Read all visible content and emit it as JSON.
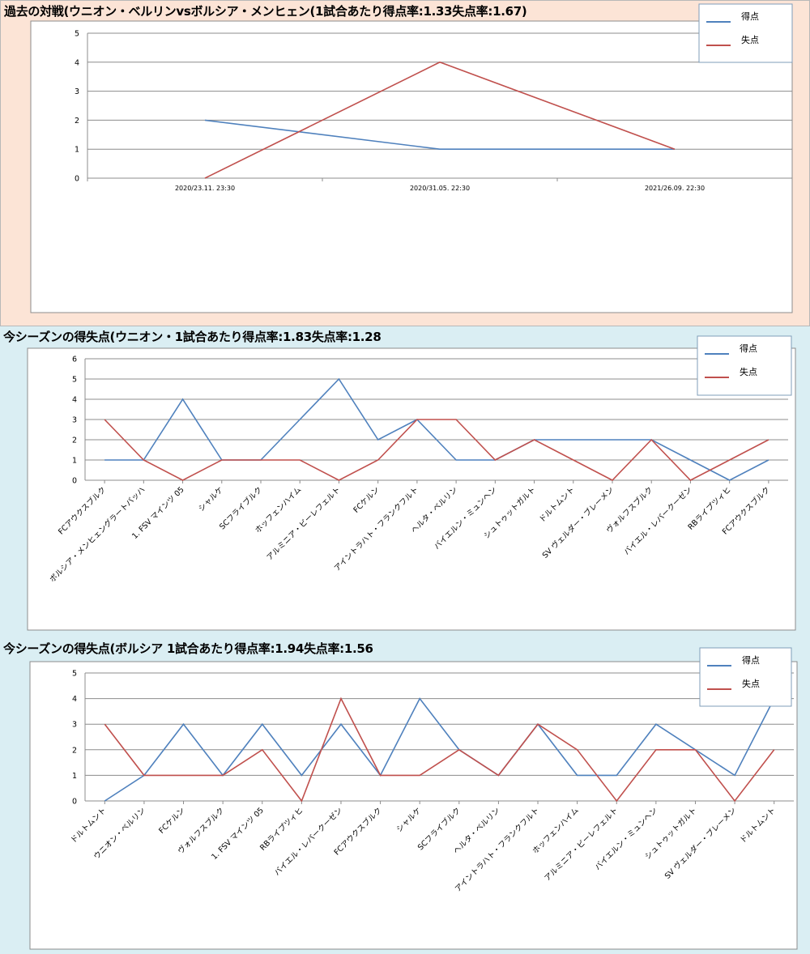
{
  "colors": {
    "scored": "#4f81bd",
    "conceded": "#c0504d",
    "grid": "#8c8c8c",
    "panel1_bg": "#fce4d6",
    "panel23_bg": "#daeef3"
  },
  "legend": {
    "scored": "得点",
    "conceded": "失点"
  },
  "chart_data": [
    {
      "type": "line",
      "title": "過去の対戦(ウニオン・ベルリンvsボルシア・メンヒェン(1試合あたり得点率:1.33失点率:1.67)",
      "categories": [
        "2020/23.11. 23:30",
        "2020/31.05. 22:30",
        "2021/26.09. 22:30"
      ],
      "series": [
        {
          "name": "得点",
          "values": [
            2,
            1,
            1
          ]
        },
        {
          "name": "失点",
          "values": [
            0,
            4,
            1
          ]
        }
      ],
      "ylim": [
        0,
        5
      ],
      "yticks": [
        "0",
        "1",
        "2",
        "3",
        "4",
        "5"
      ],
      "grid": true,
      "legend_position": "top-right"
    },
    {
      "type": "line",
      "title": "今シーズンの得失点(ウニオン・1試合あたり得点率:1.83失点率:1.28",
      "categories": [
        "FCアウクスブルク",
        "ボルシア・メンヒェングラートバッハ",
        "1. FSV マインツ 05",
        "シャルケ",
        "SCフライブルク",
        "ホッフェンハイム",
        "アルミニア・ビーレフェルト",
        "FCケルン",
        "アイントラハト・フランクフルト",
        "ヘルタ・ベルリン",
        "バイエルン・ミュンヘン",
        "シュトゥットガルト",
        "ドルトムント",
        "SV ヴェルダー・ブレーメン",
        "ヴォルフスブルク",
        "バイエル・レバークーゼン",
        "RBライプツィヒ",
        "FCアウクスブルク"
      ],
      "series": [
        {
          "name": "得点",
          "values": [
            1,
            1,
            4,
            1,
            1,
            3,
            5,
            2,
            3,
            1,
            1,
            2,
            2,
            2,
            2,
            1,
            0,
            1
          ]
        },
        {
          "name": "失点",
          "values": [
            3,
            1,
            0,
            1,
            1,
            1,
            0,
            1,
            3,
            3,
            1,
            2,
            1,
            0,
            2,
            0,
            1,
            2
          ]
        }
      ],
      "ylim": [
        0,
        6
      ],
      "yticks": [
        "0",
        "1",
        "2",
        "3",
        "4",
        "5",
        "6"
      ],
      "grid": true,
      "legend_position": "top-right"
    },
    {
      "type": "line",
      "title": "今シーズンの得失点(ボルシア 1試合あたり得点率:1.94失点率:1.56",
      "categories": [
        "ドルトムント",
        "ウニオン・ベルリン",
        "FCケルン",
        "ヴォルフスブルク",
        "1. FSV マインツ 05",
        "RBライプツィヒ",
        "バイエル・レバークーゼン",
        "FCアウクスブルク",
        "シャルケ",
        "SCフライブルク",
        "ヘルタ・ベルリン",
        "アイントラハト・フランクフルト",
        "ホッフェンハイム",
        "アルミニア・ビーレフェルト",
        "バイエルン・ミュンヘン",
        "シュトゥットガルト",
        "SV ヴェルダー・ブレーメン",
        "ドルトムント"
      ],
      "series": [
        {
          "name": "得点",
          "values": [
            0,
            1,
            3,
            1,
            3,
            1,
            3,
            1,
            4,
            2,
            1,
            3,
            1,
            1,
            3,
            2,
            1,
            4
          ]
        },
        {
          "name": "失点",
          "values": [
            3,
            1,
            1,
            1,
            2,
            0,
            4,
            1,
            1,
            2,
            1,
            3,
            2,
            0,
            2,
            2,
            0,
            2
          ]
        }
      ],
      "ylim": [
        0,
        5
      ],
      "yticks": [
        "0",
        "1",
        "2",
        "3",
        "4",
        "5"
      ],
      "grid": true,
      "legend_position": "top-right"
    }
  ]
}
